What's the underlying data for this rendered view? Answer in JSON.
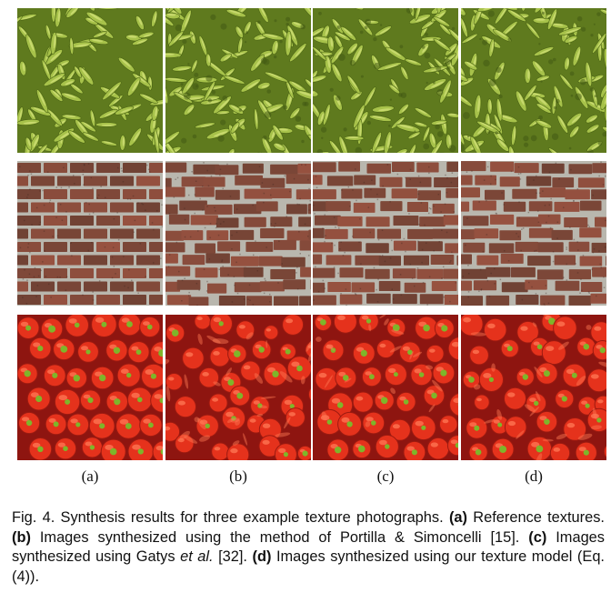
{
  "figure": {
    "columns": [
      {
        "label": "(a)"
      },
      {
        "label": "(b)"
      },
      {
        "label": "(c)"
      },
      {
        "label": "(d)"
      }
    ],
    "rows": [
      "peas",
      "brick-wall",
      "peppers"
    ],
    "caption": {
      "prefix": "Fig. 4. Synthesis results for three example texture photographs. ",
      "a_tag": "(a)",
      "a_text": " Reference textures. ",
      "b_tag": "(b)",
      "b_text": " Images synthesized using the method of Portilla & Simoncelli [15]. ",
      "c_tag": "(c)",
      "c_text": " Images synthesized using Gatys ",
      "c_italic": "et al.",
      "c_text2": " [32]. ",
      "d_tag": "(d)",
      "d_text": " Images synthesized using our texture model (Eq. (4))."
    },
    "colors": {
      "pea_bg": "#5f7a1e",
      "pea": "#a7c24a",
      "pea_highlight": "#d4e27c",
      "brick_mortar": "#b9b7ae",
      "brick": "#7a4a3c",
      "pepper_bg": "#8e1510",
      "pepper": "#e5321c",
      "pepper_highlight": "#ff7a55",
      "stem": "#7fb52a"
    }
  }
}
